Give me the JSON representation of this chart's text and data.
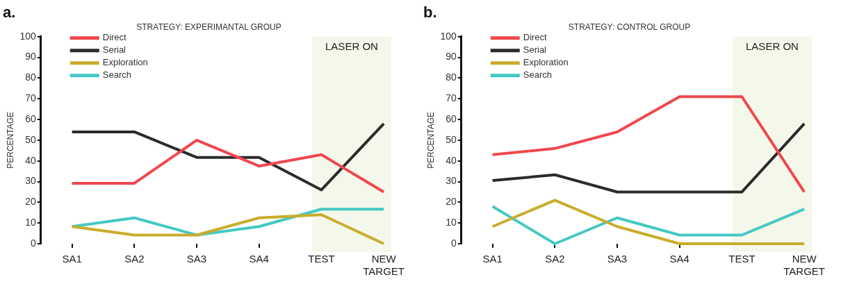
{
  "chart_data": [
    {
      "type": "line",
      "title": "a.",
      "subtitle": "STRATEGY: EXPERIMANTAL GROUP",
      "ylabel": "PERCENTAGE",
      "categories": [
        "SA1",
        "SA2",
        "SA3",
        "SA4",
        "TEST",
        "NEW TARGET"
      ],
      "series": [
        {
          "name": "Direct",
          "color": "#f0474d",
          "values": [
            29.2,
            29.2,
            50,
            37.5,
            43,
            25
          ]
        },
        {
          "name": "Serial",
          "color": "#2b2b2b",
          "values": [
            54,
            54,
            41.7,
            41.7,
            26,
            58
          ]
        },
        {
          "name": "Exploration",
          "color": "#c9ac2c",
          "values": [
            8.3,
            4.2,
            4.2,
            12.5,
            14,
            0
          ]
        },
        {
          "name": "Search",
          "color": "#44c8c4",
          "values": [
            8.3,
            12.5,
            4.2,
            8.3,
            16.7,
            16.7
          ]
        }
      ],
      "ylim": [
        0,
        100
      ],
      "yticks": [
        0,
        10,
        20,
        30,
        40,
        50,
        60,
        70,
        80,
        90,
        100
      ],
      "bands": [
        {
          "axis": "x",
          "from": "TEST",
          "to": "NEW TARGET",
          "label": "LASER ON",
          "color": "#f3f8ea"
        }
      ],
      "grid": false,
      "legend": "top left",
      "marker": "none",
      "line_style": "solid"
    },
    {
      "type": "line",
      "title": "b.",
      "subtitle": "STRATEGY: CONTROL GROUP",
      "ylabel": "PERCENTAGE",
      "categories": [
        "SA1",
        "SA2",
        "SA3",
        "SA4",
        "TEST",
        "NEW TARGET"
      ],
      "series": [
        {
          "name": "Direct",
          "color": "#f0474d",
          "values": [
            43,
            46,
            54,
            71,
            71,
            25
          ]
        },
        {
          "name": "Serial",
          "color": "#2b2b2b",
          "values": [
            30.5,
            33.3,
            25,
            25,
            25,
            58
          ]
        },
        {
          "name": "Exploration",
          "color": "#c9ac2c",
          "values": [
            8.3,
            21,
            8.3,
            0,
            0,
            0
          ]
        },
        {
          "name": "Search",
          "color": "#44c8c4",
          "values": [
            18,
            0,
            12.5,
            4.2,
            4.2,
            16.7
          ]
        }
      ],
      "ylim": [
        0,
        100
      ],
      "yticks": [
        0,
        10,
        20,
        30,
        40,
        50,
        60,
        70,
        80,
        90,
        100
      ],
      "bands": [
        {
          "axis": "x",
          "from": "TEST",
          "to": "NEW TARGET",
          "label": "LASER ON",
          "color": "#f3f8ea"
        }
      ],
      "grid": false,
      "legend": "top left",
      "marker": "none",
      "line_style": "solid"
    }
  ]
}
